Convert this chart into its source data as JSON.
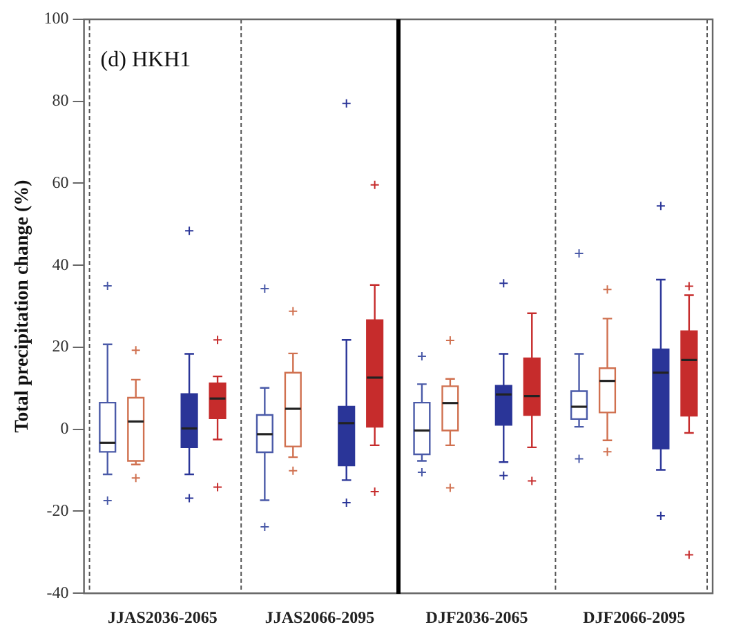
{
  "chart_data": {
    "type": "box",
    "ylabel": "Total precipitation change (%)",
    "annotations": [
      "(d) HKH1"
    ],
    "categories": [
      "JJAS2036-2065",
      "JJAS2066-2095",
      "DJF2036-2065",
      "DJF2066-2095"
    ],
    "ylim": [
      -40,
      100
    ],
    "yticks": [
      -40,
      -20,
      0,
      20,
      40,
      60,
      80,
      100
    ],
    "grid": "x",
    "legend": false,
    "marker": "cross",
    "series": [
      {
        "color": "#4a5aa8",
        "boxes": [
          {
            "low": -11,
            "q1": -5.5,
            "median": -3.3,
            "q3": 6.5,
            "high": 20.7,
            "outliers": [
              35,
              -17.4
            ]
          },
          {
            "low": -17.3,
            "q1": -5.6,
            "median": -1.2,
            "q3": 3.5,
            "high": 10.1,
            "outliers": [
              34.3,
              -23.8
            ]
          },
          {
            "low": -7.7,
            "q1": -6.1,
            "median": -0.3,
            "q3": 6.5,
            "high": 11,
            "outliers": [
              17.8,
              -10.5
            ]
          },
          {
            "low": 0.6,
            "q1": 2.5,
            "median": 5.5,
            "q3": 9.3,
            "high": 18.4,
            "outliers": [
              42.9,
              -7.2
            ]
          }
        ]
      },
      {
        "color": "#d0704f",
        "boxes": [
          {
            "low": -8.6,
            "q1": -7.7,
            "median": 1.9,
            "q3": 7.7,
            "high": 12.1,
            "outliers": [
              19.3,
              -11.9
            ]
          },
          {
            "low": -6.8,
            "q1": -4.2,
            "median": 5,
            "q3": 13.8,
            "high": 18.5,
            "outliers": [
              28.8,
              -10.1
            ]
          },
          {
            "low": -3.9,
            "q1": -0.3,
            "median": 6.4,
            "q3": 10.5,
            "high": 12.3,
            "outliers": [
              21.7,
              -14.3
            ]
          },
          {
            "low": -2.7,
            "q1": 4.1,
            "median": 11.8,
            "q3": 14.9,
            "high": 27,
            "outliers": [
              34.1,
              -5.5
            ]
          }
        ]
      },
      {
        "color": "#2a3598",
        "boxes": [
          {
            "low": -11,
            "q1": -4.4,
            "median": 0.2,
            "q3": 8.6,
            "high": 18.4,
            "outliers": [
              48.4,
              -16.8
            ]
          },
          {
            "low": -12.4,
            "q1": -8.8,
            "median": 1.5,
            "q3": 5.5,
            "high": 21.8,
            "outliers": [
              79.5,
              -17.9
            ]
          },
          {
            "low": -8,
            "q1": 1.1,
            "median": 8.5,
            "q3": 10.6,
            "high": 18.4,
            "outliers": [
              35.6,
              -11.3
            ]
          },
          {
            "low": -9.9,
            "q1": -4.7,
            "median": 13.8,
            "q3": 19.5,
            "high": 36.5,
            "outliers": [
              54.5,
              -21.1
            ]
          }
        ]
      },
      {
        "color": "#c62c2c",
        "boxes": [
          {
            "low": -2.5,
            "q1": 2.7,
            "median": 7.5,
            "q3": 11.2,
            "high": 12.9,
            "outliers": [
              21.8,
              -14.1
            ]
          },
          {
            "low": -3.9,
            "q1": 0.6,
            "median": 12.6,
            "q3": 26.6,
            "high": 35.2,
            "outliers": [
              59.6,
              -15.2
            ]
          },
          {
            "low": -4.4,
            "q1": 3.5,
            "median": 8.1,
            "q3": 17.3,
            "high": 28.3,
            "outliers": [
              -12.6
            ]
          },
          {
            "low": -0.9,
            "q1": 3.3,
            "median": 16.9,
            "q3": 23.9,
            "high": 32.7,
            "outliers": [
              34.9,
              -30.6
            ]
          }
        ]
      }
    ]
  }
}
